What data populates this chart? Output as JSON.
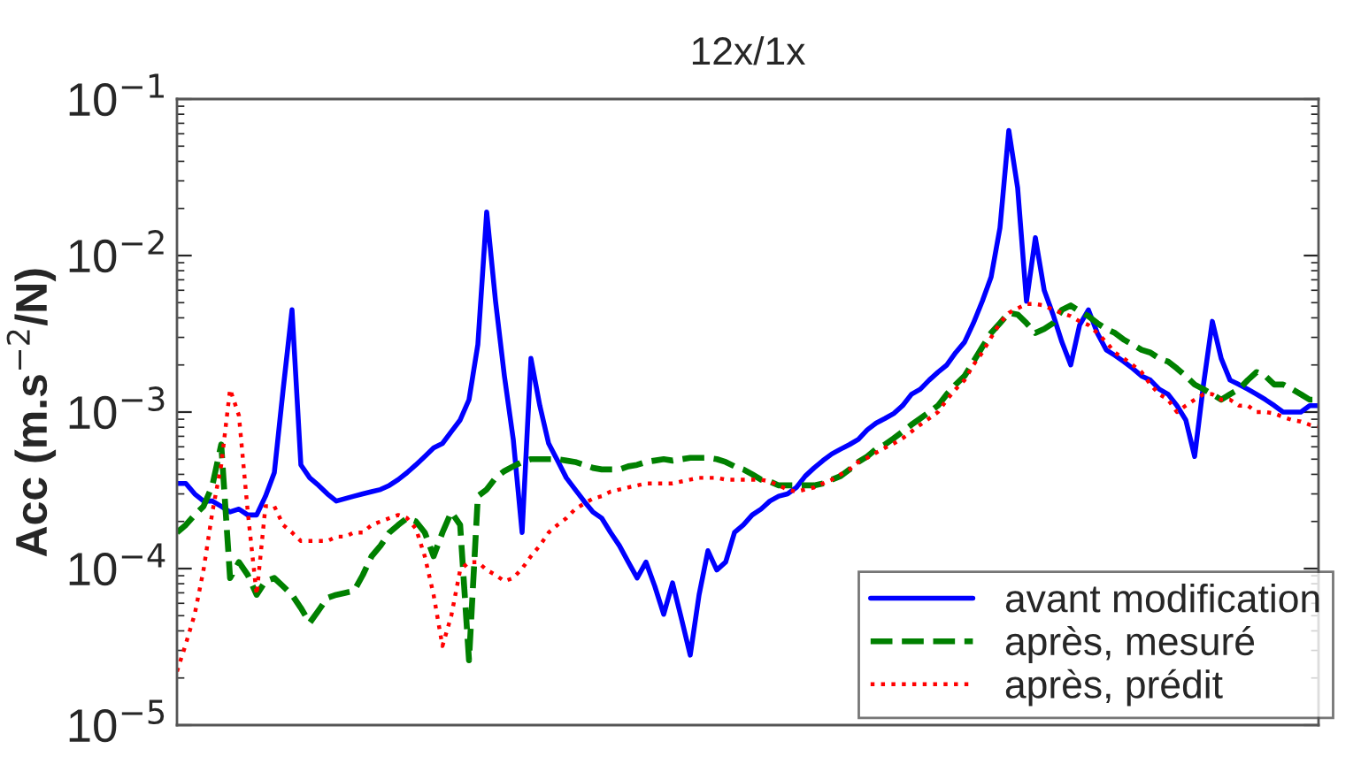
{
  "chart_data": {
    "type": "line",
    "title": "12x/1x",
    "ylabel": "Acc (m.s$^{−2}$/N)",
    "categories": [
      null,
      null,
      null,
      null,
      null,
      null,
      null,
      null,
      null,
      null,
      null,
      null,
      null,
      null,
      null,
      null,
      null,
      null,
      null,
      null,
      null,
      null,
      null,
      null,
      null,
      null,
      null,
      null,
      null,
      null,
      null,
      null,
      null,
      null,
      null,
      null,
      null,
      null,
      null,
      null,
      null,
      null,
      null,
      null,
      null,
      null,
      null,
      null,
      null,
      null,
      null,
      null,
      null,
      null,
      null,
      null,
      null,
      null,
      null,
      null,
      null,
      null,
      null,
      null,
      null,
      null,
      null,
      null,
      null,
      null,
      null,
      null,
      null,
      null,
      null,
      null,
      null,
      null,
      null,
      null,
      null,
      null,
      null,
      null,
      null,
      null,
      null,
      null,
      null,
      null,
      null,
      null,
      null,
      null,
      null,
      null,
      null,
      null,
      null,
      null,
      null,
      null,
      null,
      null,
      null,
      null,
      null,
      null,
      null,
      null,
      null,
      null,
      null,
      null,
      null,
      null,
      null,
      null,
      null,
      null,
      null,
      null,
      null,
      null,
      null,
      null,
      null,
      null,
      null,
      null
    ],
    "series": [
      {
        "name": "avant modification",
        "color": "#0000ff",
        "line_style": "solid",
        "values": [
          0.00035,
          0.00035,
          0.0003,
          0.00027,
          0.00027,
          0.00025,
          0.00023,
          0.00024,
          0.00022,
          0.00022,
          0.00029,
          0.00041,
          0.0014,
          0.0045,
          0.00046,
          0.00038,
          0.00034,
          0.0003,
          0.00027,
          0.00028,
          0.00029,
          0.0003,
          0.00031,
          0.00032,
          0.00034,
          0.00037,
          0.00041,
          0.00046,
          0.00052,
          0.00059,
          0.00063,
          0.00075,
          0.00089,
          0.0012,
          0.0027,
          0.019,
          0.0051,
          0.0017,
          0.00067,
          0.00017,
          0.0022,
          0.0011,
          0.00063,
          0.00049,
          0.00038,
          0.00032,
          0.00027,
          0.00023,
          0.00021,
          0.00017,
          0.00014,
          0.00011,
          8.7e-05,
          0.00011,
          7.7e-05,
          5.1e-05,
          8.1e-05,
          4.8e-05,
          2.8e-05,
          6.8e-05,
          0.00013,
          9.8e-05,
          0.00011,
          0.00017,
          0.00019,
          0.00022,
          0.00024,
          0.00027,
          0.00029,
          0.0003,
          0.00033,
          0.00039,
          0.00044,
          0.00049,
          0.00054,
          0.00058,
          0.00062,
          0.00067,
          0.00077,
          0.00085,
          0.00091,
          0.00098,
          0.0011,
          0.0013,
          0.0014,
          0.0016,
          0.0018,
          0.002,
          0.0024,
          0.0028,
          0.0037,
          0.0051,
          0.0073,
          0.015,
          0.063,
          0.027,
          0.0051,
          0.013,
          0.006,
          0.0042,
          0.0028,
          0.002,
          0.0036,
          0.0045,
          0.0032,
          0.0025,
          0.0023,
          0.0021,
          0.0019,
          0.0017,
          0.0016,
          0.0014,
          0.0013,
          0.0011,
          0.00089,
          0.00052,
          0.0015,
          0.0038,
          0.0022,
          0.0016,
          0.0015,
          0.0014,
          0.0013,
          0.0012,
          0.0011,
          0.001,
          0.001,
          0.001,
          0.0011,
          0.0011
        ]
      },
      {
        "name": "après, mesuré",
        "color": "#008000",
        "line_style": "dashed",
        "values": [
          0.00017,
          0.00019,
          0.00022,
          0.00025,
          0.00034,
          0.00062,
          8.7e-05,
          0.00011,
          9.1e-05,
          6.8e-05,
          8.3e-05,
          8.7e-05,
          7.7e-05,
          6.8e-05,
          5.6e-05,
          4.5e-05,
          5.4e-05,
          6.5e-05,
          6.8e-05,
          7e-05,
          7.2e-05,
          9.1e-05,
          0.00012,
          0.00014,
          0.00017,
          0.00019,
          0.00021,
          0.0002,
          0.00017,
          0.00012,
          0.00017,
          0.00023,
          0.00019,
          2.6e-05,
          0.00029,
          0.00032,
          0.00038,
          0.00042,
          0.00045,
          0.00048,
          0.0005,
          0.0005,
          0.0005,
          0.0005,
          0.00049,
          0.00048,
          0.00046,
          0.00044,
          0.00043,
          0.00043,
          0.00043,
          0.00045,
          0.00046,
          0.00048,
          0.00049,
          0.0005,
          0.00049,
          0.0005,
          0.00051,
          0.00051,
          0.00051,
          0.0005,
          0.00048,
          0.00045,
          0.00043,
          0.0004,
          0.00037,
          0.00036,
          0.00034,
          0.00034,
          0.00034,
          0.00034,
          0.00034,
          0.00035,
          0.00037,
          0.00039,
          0.00043,
          0.00048,
          0.00052,
          0.00058,
          0.00062,
          0.00068,
          0.00075,
          0.00083,
          0.00091,
          0.001,
          0.0011,
          0.0013,
          0.0015,
          0.0017,
          0.0021,
          0.0026,
          0.0032,
          0.0037,
          0.0043,
          0.0042,
          0.0037,
          0.0032,
          0.0034,
          0.0037,
          0.0045,
          0.0048,
          0.0044,
          0.0041,
          0.0037,
          0.0034,
          0.0032,
          0.0029,
          0.0027,
          0.0025,
          0.0024,
          0.0022,
          0.0021,
          0.0019,
          0.0017,
          0.0015,
          0.0014,
          0.0013,
          0.0012,
          0.0013,
          0.0014,
          0.0016,
          0.0018,
          0.0017,
          0.0015,
          0.0015,
          0.0014,
          0.0013,
          0.0012,
          0.0012
        ]
      },
      {
        "name": "après, prédit",
        "color": "#ff0000",
        "line_style": "dotted",
        "values": [
          2.2e-05,
          3.3e-05,
          5.1e-05,
          9.8e-05,
          0.00023,
          0.00046,
          0.0014,
          0.00095,
          0.00023,
          6.8e-05,
          0.00025,
          0.00025,
          0.00019,
          0.00017,
          0.00015,
          0.00015,
          0.00015,
          0.00015,
          0.00016,
          0.00016,
          0.00017,
          0.00017,
          0.00019,
          0.0002,
          0.00021,
          0.00022,
          0.00021,
          0.00018,
          0.00012,
          6.8e-05,
          3.2e-05,
          5e-05,
          9.8e-05,
          0.00011,
          0.00011,
          9.8e-05,
          9.1e-05,
          8.3e-05,
          8.7e-05,
          0.0001,
          0.00012,
          0.00014,
          0.00017,
          0.00019,
          0.00021,
          0.00024,
          0.00026,
          0.00028,
          0.00029,
          0.00031,
          0.00032,
          0.00033,
          0.00034,
          0.00035,
          0.00035,
          0.00035,
          0.00035,
          0.00036,
          0.00037,
          0.00038,
          0.00038,
          0.00038,
          0.00037,
          0.00037,
          0.00037,
          0.00037,
          0.00037,
          0.00036,
          0.00034,
          0.00032,
          0.00031,
          0.00032,
          0.00033,
          0.00035,
          0.00037,
          0.0004,
          0.00043,
          0.00048,
          0.00051,
          0.00055,
          0.00059,
          0.00063,
          0.00068,
          0.00075,
          0.00083,
          0.00091,
          0.001,
          0.0012,
          0.0014,
          0.0016,
          0.002,
          0.0024,
          0.003,
          0.0037,
          0.0043,
          0.0046,
          0.0049,
          0.0049,
          0.0048,
          0.0045,
          0.0043,
          0.0041,
          0.0038,
          0.0036,
          0.0032,
          0.0028,
          0.0024,
          0.0022,
          0.002,
          0.0018,
          0.0015,
          0.0013,
          0.0012,
          0.001,
          0.0011,
          0.0012,
          0.0013,
          0.0013,
          0.0012,
          0.0012,
          0.0011,
          0.0011,
          0.001,
          0.001,
          0.00098,
          0.00093,
          0.00089,
          0.00087,
          0.00083,
          0.00081
        ]
      }
    ],
    "log": true,
    "ylim": [
      1e-05,
      0.1
    ],
    "yticks": [
      {
        "value": 1e-05,
        "label": "10$^{−5}$"
      },
      {
        "value": 0.0001,
        "label": "10$^{−4}$"
      },
      {
        "value": 0.001,
        "label": "10$^{−3}$"
      },
      {
        "value": 0.01,
        "label": "10$^{−2}$"
      },
      {
        "value": 0.1,
        "label": "10$^{−1}$"
      }
    ],
    "tick_labels": "y",
    "legend": "bottom right"
  }
}
